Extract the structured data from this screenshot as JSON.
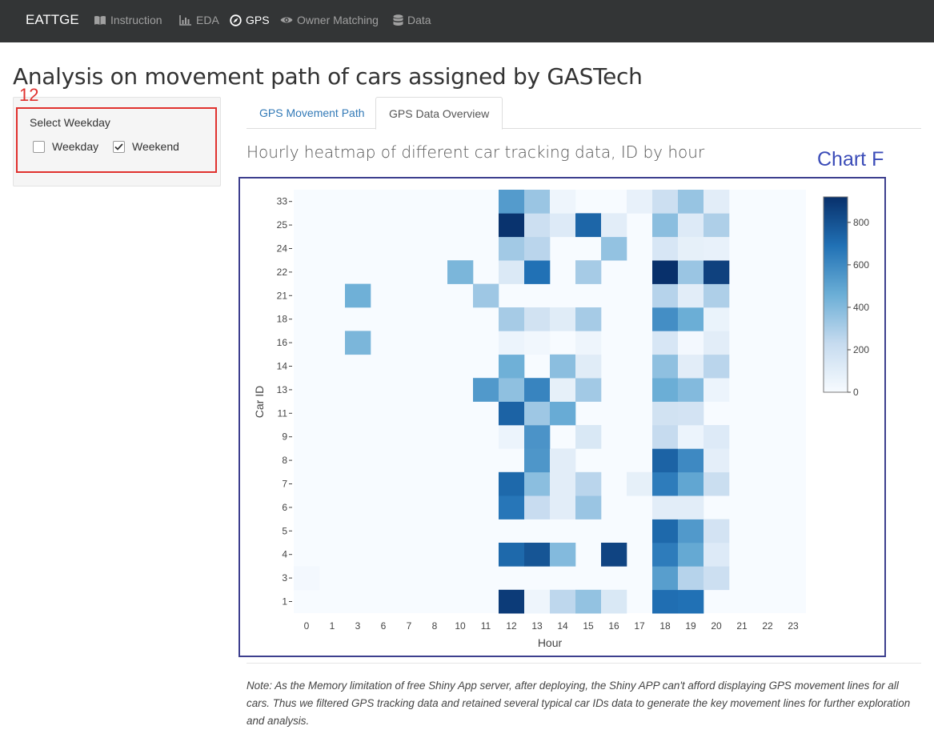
{
  "navbar": {
    "brand": "EATTGE",
    "items": [
      {
        "label": "Instruction",
        "icon": "book-icon",
        "active": false
      },
      {
        "label": "EDA",
        "icon": "bar-chart-icon",
        "active": false
      },
      {
        "label": "GPS",
        "icon": "compass-icon",
        "active": true
      },
      {
        "label": "Owner Matching",
        "icon": "eye-icon",
        "active": false
      },
      {
        "label": "Data",
        "icon": "database-icon",
        "active": false
      }
    ]
  },
  "page": {
    "title": "Analysis on movement path of cars assigned by GASTech"
  },
  "annotations": {
    "sidebar_number": "12",
    "chart_label": "Chart F"
  },
  "sidebar": {
    "label": "Select Weekday",
    "options": [
      {
        "label": "Weekday",
        "checked": false
      },
      {
        "label": "Weekend",
        "checked": true
      }
    ]
  },
  "tabs": [
    {
      "label": "GPS Movement Path",
      "active": false
    },
    {
      "label": "GPS Data Overview",
      "active": true
    }
  ],
  "chart_title": "Hourly heatmap of different car tracking data, ID by hour",
  "note": "Note: As the Memory limitation of free Shiny App server, after deploying, the Shiny APP can't afford displaying GPS movement lines for all cars. Thus we filtered GPS tracking data and retained several typical car IDs data to generate the key movement lines for further exploration and analysis.",
  "chart_data": {
    "type": "heatmap",
    "xlabel": "Hour",
    "ylabel": "Car ID",
    "x": [
      "0",
      "1",
      "3",
      "6",
      "7",
      "8",
      "10",
      "11",
      "12",
      "13",
      "14",
      "15",
      "16",
      "17",
      "18",
      "19",
      "20",
      "21",
      "22",
      "23"
    ],
    "y": [
      "1",
      "3",
      "4",
      "5",
      "6",
      "7",
      "8",
      "9",
      "11",
      "13",
      "14",
      "16",
      "18",
      "21",
      "22",
      "24",
      "25",
      "33"
    ],
    "z": [
      [
        0,
        0,
        0,
        0,
        0,
        0,
        0,
        0,
        880,
        40,
        250,
        360,
        140,
        0,
        700,
        690,
        0,
        0,
        0,
        0
      ],
      [
        20,
        0,
        0,
        0,
        0,
        0,
        0,
        0,
        0,
        0,
        0,
        0,
        0,
        0,
        520,
        270,
        200,
        0,
        0,
        0
      ],
      [
        0,
        0,
        0,
        0,
        0,
        0,
        0,
        0,
        720,
        790,
        400,
        0,
        850,
        0,
        650,
        480,
        120,
        0,
        0,
        0
      ],
      [
        0,
        0,
        0,
        0,
        0,
        0,
        0,
        0,
        0,
        0,
        0,
        0,
        0,
        0,
        720,
        540,
        170,
        0,
        0,
        0
      ],
      [
        0,
        0,
        0,
        0,
        0,
        0,
        0,
        0,
        670,
        220,
        100,
        340,
        0,
        0,
        100,
        100,
        0,
        0,
        0,
        0
      ],
      [
        0,
        0,
        0,
        0,
        0,
        0,
        0,
        0,
        720,
        380,
        100,
        260,
        0,
        80,
        650,
        490,
        210,
        0,
        0,
        0
      ],
      [
        0,
        0,
        0,
        0,
        0,
        0,
        0,
        0,
        0,
        550,
        100,
        0,
        0,
        0,
        740,
        600,
        90,
        0,
        0,
        0
      ],
      [
        0,
        0,
        0,
        0,
        0,
        0,
        0,
        0,
        50,
        560,
        0,
        140,
        0,
        0,
        230,
        50,
        120,
        0,
        0,
        0
      ],
      [
        0,
        0,
        0,
        0,
        0,
        0,
        0,
        0,
        740,
        330,
        470,
        0,
        0,
        0,
        180,
        170,
        0,
        0,
        0,
        0
      ],
      [
        0,
        0,
        0,
        0,
        0,
        0,
        0,
        540,
        370,
        620,
        80,
        320,
        0,
        0,
        460,
        400,
        50,
        0,
        0,
        0
      ],
      [
        0,
        0,
        0,
        0,
        0,
        0,
        0,
        0,
        450,
        0,
        380,
        110,
        0,
        0,
        370,
        100,
        260,
        0,
        0,
        0
      ],
      [
        0,
        0,
        420,
        0,
        0,
        0,
        0,
        0,
        50,
        30,
        0,
        40,
        0,
        0,
        150,
        20,
        100,
        0,
        0,
        0
      ],
      [
        0,
        0,
        0,
        0,
        0,
        0,
        0,
        0,
        310,
        180,
        110,
        310,
        0,
        0,
        580,
        460,
        60,
        0,
        0,
        0
      ],
      [
        0,
        0,
        450,
        0,
        0,
        0,
        0,
        330,
        0,
        0,
        0,
        0,
        0,
        0,
        270,
        100,
        290,
        0,
        0,
        0
      ],
      [
        0,
        0,
        0,
        0,
        0,
        0,
        420,
        0,
        130,
        690,
        0,
        310,
        0,
        0,
        920,
        340,
        860,
        0,
        0,
        0
      ],
      [
        0,
        0,
        0,
        0,
        0,
        0,
        0,
        0,
        320,
        260,
        0,
        0,
        360,
        0,
        150,
        80,
        70,
        0,
        0,
        0
      ],
      [
        0,
        0,
        0,
        0,
        0,
        0,
        0,
        0,
        910,
        200,
        120,
        730,
        100,
        0,
        380,
        120,
        290,
        0,
        0,
        0
      ],
      [
        0,
        0,
        0,
        0,
        0,
        0,
        0,
        0,
        530,
        340,
        40,
        0,
        0,
        70,
        200,
        350,
        100,
        0,
        0,
        0
      ]
    ],
    "colorscale": {
      "min": 0,
      "max": 920,
      "low": "#f7fbff",
      "high": "#08306b"
    },
    "colorbar_ticks": [
      0,
      200,
      400,
      600,
      800
    ]
  }
}
